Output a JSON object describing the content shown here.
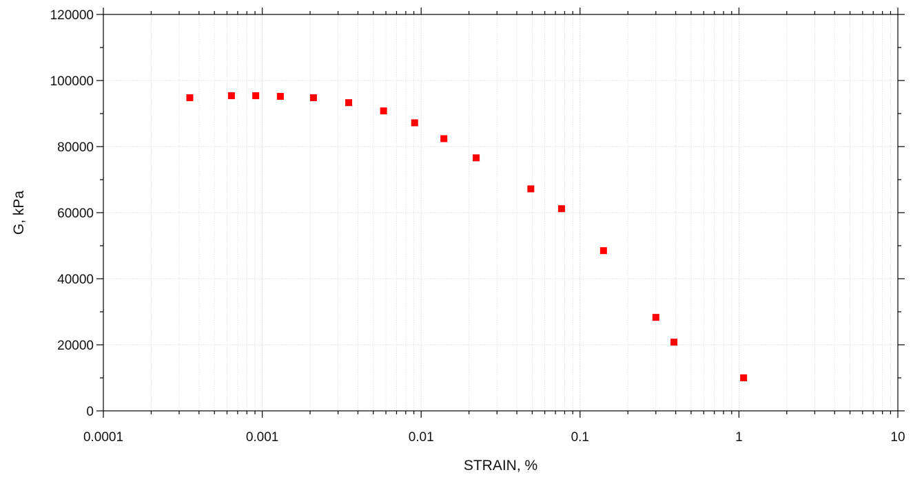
{
  "chart_data": {
    "type": "scatter",
    "title": "",
    "xlabel": "STRAIN, %",
    "ylabel": "G, kPa",
    "x_scale": "log",
    "xlim": [
      0.0001,
      10
    ],
    "ylim": [
      0,
      120000
    ],
    "x_tick_labels": [
      "0.0001",
      "0.001",
      "0.01",
      "0.1",
      "1",
      "10"
    ],
    "y_tick_labels": [
      "0",
      "20000",
      "40000",
      "60000",
      "80000",
      "100000",
      "120000"
    ],
    "grid": true,
    "marker": "square",
    "marker_color": "#ff0000",
    "series": [
      {
        "points": [
          {
            "x": 0.00035,
            "y": 94800
          },
          {
            "x": 0.00064,
            "y": 95400
          },
          {
            "x": 0.00091,
            "y": 95400
          },
          {
            "x": 0.0013,
            "y": 95200
          },
          {
            "x": 0.0021,
            "y": 94800
          },
          {
            "x": 0.0035,
            "y": 93300
          },
          {
            "x": 0.0058,
            "y": 90800
          },
          {
            "x": 0.0091,
            "y": 87200
          },
          {
            "x": 0.0139,
            "y": 82400
          },
          {
            "x": 0.0222,
            "y": 76600
          },
          {
            "x": 0.049,
            "y": 67200
          },
          {
            "x": 0.0765,
            "y": 61200
          },
          {
            "x": 0.1405,
            "y": 48500
          },
          {
            "x": 0.3,
            "y": 28300
          },
          {
            "x": 0.39,
            "y": 20800
          },
          {
            "x": 1.07,
            "y": 10000
          }
        ]
      }
    ]
  }
}
